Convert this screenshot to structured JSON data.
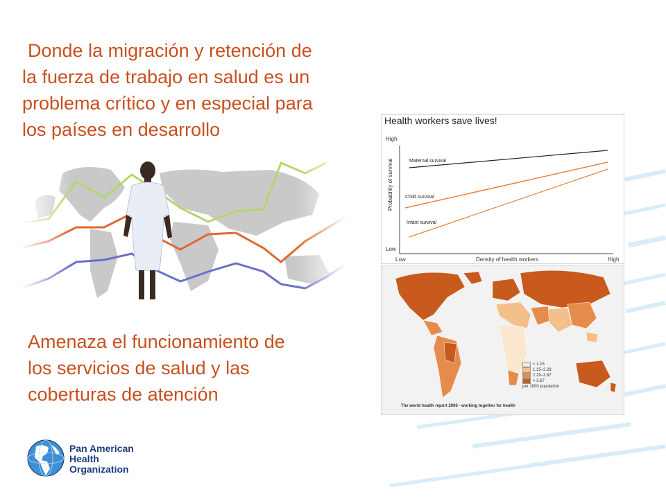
{
  "headline": {
    "line1": "Donde la migración y retención de",
    "line2": "la fuerza de trabajo en salud es un",
    "line3": "problema crítico y en especial para",
    "line4": "los países en desarrollo"
  },
  "body": {
    "line1": "Amenaza el funcionamiento de",
    "line2": "los servicios  de salud y las",
    "line3": "coberturas de atención"
  },
  "survival_chart": {
    "title": "Health workers save lives!",
    "y_axis_label": "Probability of survival",
    "y_high": "High",
    "y_low": "Low",
    "x_axis_label": "Density of health workers",
    "x_low": "Low",
    "x_high": "High",
    "series": {
      "maternal": "Maternal survival",
      "child": "Child survival",
      "infant": "Infant survival"
    },
    "colors": {
      "maternal": "#222222",
      "child": "#e8823c",
      "infant": "#e8823c"
    }
  },
  "map": {
    "legend": [
      {
        "label": "< 1.15",
        "color": "#fbe6cf"
      },
      {
        "label": "1.15–2.28",
        "color": "#f3c08c"
      },
      {
        "label": "2.29–3.87",
        "color": "#e58c4d"
      },
      {
        "label": "> 3.87",
        "color": "#c85a1e"
      }
    ],
    "legend_note": "per 1000 population",
    "credit": "The world health report 2006 - working together for health"
  },
  "logo": {
    "line1": "Pan American",
    "line2": "Health",
    "line3": "Organization"
  },
  "colors": {
    "accent_text": "#c8501e",
    "logo_blue": "#1b3c7a"
  }
}
